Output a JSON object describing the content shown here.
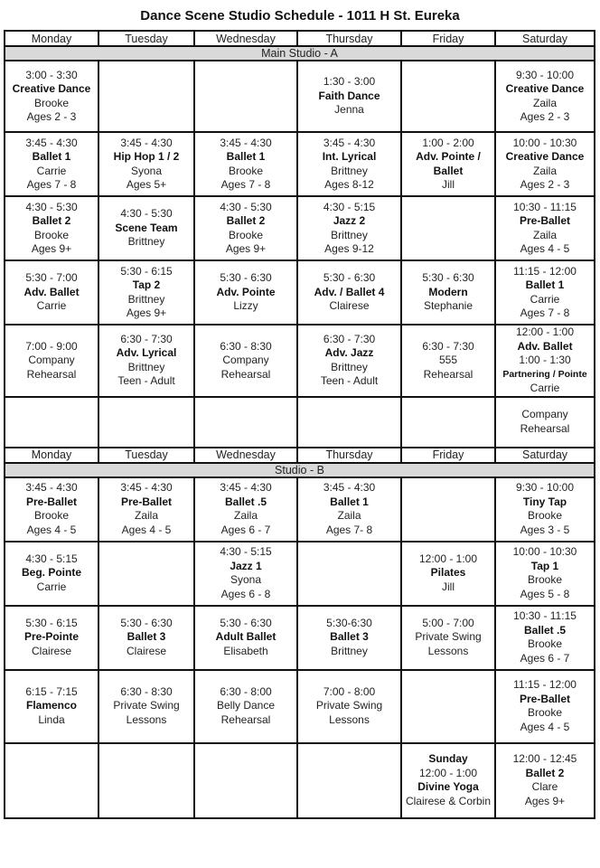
{
  "title": "Dance Scene Studio Schedule - 1011 H St. Eureka",
  "days": [
    "Monday",
    "Tuesday",
    "Wednesday",
    "Thursday",
    "Friday",
    "Saturday"
  ],
  "studios": [
    {
      "name": "Main Studio - A",
      "rows": [
        [
          [
            {
              "text": "3:00 - 3:30"
            },
            {
              "text": "Creative Dance",
              "bold": true
            },
            {
              "text": "Brooke"
            },
            {
              "text": "Ages 2 - 3"
            }
          ],
          [],
          [],
          [
            {
              "text": "1:30 - 3:00"
            },
            {
              "text": "Faith Dance",
              "bold": true
            },
            {
              "text": "Jenna"
            }
          ],
          [],
          [
            {
              "text": "9:30 - 10:00"
            },
            {
              "text": "Creative Dance",
              "bold": true
            },
            {
              "text": "Zaila"
            },
            {
              "text": "Ages 2 - 3"
            }
          ]
        ],
        [
          [
            {
              "text": "3:45 - 4:30"
            },
            {
              "text": "Ballet 1",
              "bold": true
            },
            {
              "text": "Carrie"
            },
            {
              "text": "Ages 7 - 8"
            }
          ],
          [
            {
              "text": "3:45 - 4:30"
            },
            {
              "text": "Hip Hop 1 / 2",
              "bold": true
            },
            {
              "text": "Syona"
            },
            {
              "text": "Ages 5+"
            }
          ],
          [
            {
              "text": "3:45 - 4:30"
            },
            {
              "text": "Ballet 1",
              "bold": true
            },
            {
              "text": "Brooke"
            },
            {
              "text": "Ages 7 - 8"
            }
          ],
          [
            {
              "text": "3:45 - 4:30"
            },
            {
              "text": "Int. Lyrical",
              "bold": true
            },
            {
              "text": "Brittney"
            },
            {
              "text": "Ages 8-12"
            }
          ],
          [
            {
              "text": "1:00 - 2:00"
            },
            {
              "text": "Adv. Pointe /",
              "bold": true
            },
            {
              "text": "Ballet",
              "bold": true
            },
            {
              "text": "Jill"
            }
          ],
          [
            {
              "text": "10:00 - 10:30"
            },
            {
              "text": "Creative Dance",
              "bold": true
            },
            {
              "text": "Zaila"
            },
            {
              "text": "Ages 2 - 3"
            }
          ]
        ],
        [
          [
            {
              "text": "4:30 - 5:30"
            },
            {
              "text": "Ballet 2",
              "bold": true
            },
            {
              "text": "Brooke"
            },
            {
              "text": "Ages 9+"
            }
          ],
          [
            {
              "text": "4:30 - 5:30"
            },
            {
              "text": "Scene Team",
              "bold": true
            },
            {
              "text": "Brittney"
            }
          ],
          [
            {
              "text": "4:30 - 5:30"
            },
            {
              "text": "Ballet 2",
              "bold": true
            },
            {
              "text": "Brooke"
            },
            {
              "text": "Ages 9+"
            }
          ],
          [
            {
              "text": "4:30 - 5:15"
            },
            {
              "text": "Jazz 2",
              "bold": true
            },
            {
              "text": "Brittney"
            },
            {
              "text": "Ages 9-12"
            }
          ],
          [],
          [
            {
              "text": "10:30 - 11:15"
            },
            {
              "text": "Pre-Ballet",
              "bold": true
            },
            {
              "text": "Zaila"
            },
            {
              "text": "Ages 4 - 5"
            }
          ]
        ],
        [
          [
            {
              "text": "5:30 - 7:00"
            },
            {
              "text": "Adv. Ballet",
              "bold": true
            },
            {
              "text": "Carrie"
            }
          ],
          [
            {
              "text": "5:30 - 6:15"
            },
            {
              "text": "Tap 2",
              "bold": true
            },
            {
              "text": "Brittney"
            },
            {
              "text": "Ages 9+"
            }
          ],
          [
            {
              "text": "5:30 - 6:30"
            },
            {
              "text": "Adv. Pointe",
              "bold": true
            },
            {
              "text": "Lizzy"
            }
          ],
          [
            {
              "text": "5:30 - 6:30"
            },
            {
              "text": "Adv. / Ballet 4",
              "bold": true
            },
            {
              "text": "Clairese"
            }
          ],
          [
            {
              "text": "5:30 - 6:30"
            },
            {
              "text": "Modern",
              "bold": true
            },
            {
              "text": "Stephanie"
            }
          ],
          [
            {
              "text": "11:15 - 12:00"
            },
            {
              "text": "Ballet 1",
              "bold": true
            },
            {
              "text": "Carrie"
            },
            {
              "text": "Ages 7 - 8"
            }
          ]
        ],
        [
          [
            {
              "text": "7:00 - 9:00"
            },
            {
              "text": "Company"
            },
            {
              "text": "Rehearsal"
            }
          ],
          [
            {
              "text": "6:30 - 7:30"
            },
            {
              "text": "Adv. Lyrical",
              "bold": true
            },
            {
              "text": "Brittney"
            },
            {
              "text": "Teen - Adult"
            }
          ],
          [
            {
              "text": "6:30 - 8:30"
            },
            {
              "text": "Company"
            },
            {
              "text": "Rehearsal"
            }
          ],
          [
            {
              "text": "6:30 - 7:30"
            },
            {
              "text": "Adv. Jazz",
              "bold": true
            },
            {
              "text": "Brittney"
            },
            {
              "text": "Teen - Adult"
            }
          ],
          [
            {
              "text": "6:30 - 7:30"
            },
            {
              "text": "555"
            },
            {
              "text": "Rehearsal"
            }
          ],
          [
            {
              "text": "12:00 - 1:00"
            },
            {
              "text": "Adv. Ballet",
              "bold": true
            },
            {
              "text": "1:00 - 1:30"
            },
            {
              "text": "Partnering / Pointe",
              "bold": true,
              "small": true
            },
            {
              "text": "Carrie"
            }
          ]
        ],
        [
          [],
          [],
          [],
          [],
          [],
          [
            {
              "text": "Company"
            },
            {
              "text": "Rehearsal"
            }
          ]
        ]
      ]
    },
    {
      "name": "Studio - B",
      "rows": [
        [
          [
            {
              "text": "3:45 - 4:30"
            },
            {
              "text": "Pre-Ballet",
              "bold": true
            },
            {
              "text": "Brooke"
            },
            {
              "text": "Ages 4 - 5"
            }
          ],
          [
            {
              "text": "3:45 - 4:30"
            },
            {
              "text": "Pre-Ballet",
              "bold": true
            },
            {
              "text": "Zaila"
            },
            {
              "text": "Ages 4 - 5"
            }
          ],
          [
            {
              "text": "3:45 - 4:30"
            },
            {
              "text": "Ballet .5",
              "bold": true
            },
            {
              "text": "Zaila"
            },
            {
              "text": "Ages 6 - 7"
            }
          ],
          [
            {
              "text": "3:45 - 4:30"
            },
            {
              "text": "Ballet 1",
              "bold": true
            },
            {
              "text": "Zaila"
            },
            {
              "text": "Ages 7- 8"
            }
          ],
          [],
          [
            {
              "text": "9:30 - 10:00"
            },
            {
              "text": "Tiny Tap",
              "bold": true
            },
            {
              "text": "Brooke"
            },
            {
              "text": "Ages 3 - 5"
            }
          ]
        ],
        [
          [
            {
              "text": "4:30 - 5:15"
            },
            {
              "text": "Beg. Pointe",
              "bold": true
            },
            {
              "text": "Carrie"
            }
          ],
          [],
          [
            {
              "text": "4:30 - 5:15"
            },
            {
              "text": "Jazz 1",
              "bold": true
            },
            {
              "text": "Syona"
            },
            {
              "text": "Ages 6 - 8"
            }
          ],
          [],
          [
            {
              "text": "12:00 - 1:00"
            },
            {
              "text": "Pilates",
              "bold": true
            },
            {
              "text": "Jill"
            }
          ],
          [
            {
              "text": "10:00 - 10:30"
            },
            {
              "text": "Tap 1",
              "bold": true
            },
            {
              "text": "Brooke"
            },
            {
              "text": "Ages 5 - 8"
            }
          ]
        ],
        [
          [
            {
              "text": "5:30 - 6:15"
            },
            {
              "text": "Pre-Pointe",
              "bold": true
            },
            {
              "text": "Clairese"
            }
          ],
          [
            {
              "text": "5:30 - 6:30"
            },
            {
              "text": "Ballet 3",
              "bold": true
            },
            {
              "text": "Clairese"
            }
          ],
          [
            {
              "text": "5:30 - 6:30"
            },
            {
              "text": "Adult Ballet",
              "bold": true
            },
            {
              "text": "Elisabeth"
            }
          ],
          [
            {
              "text": "5:30-6:30"
            },
            {
              "text": "Ballet 3",
              "bold": true
            },
            {
              "text": "Brittney"
            }
          ],
          [
            {
              "text": "5:00 - 7:00"
            },
            {
              "text": "Private Swing"
            },
            {
              "text": "Lessons"
            }
          ],
          [
            {
              "text": "10:30 - 11:15"
            },
            {
              "text": "Ballet .5",
              "bold": true
            },
            {
              "text": "Brooke"
            },
            {
              "text": "Ages 6 - 7"
            }
          ]
        ],
        [
          [
            {
              "text": "6:15 - 7:15"
            },
            {
              "text": "Flamenco",
              "bold": true
            },
            {
              "text": "Linda"
            }
          ],
          [
            {
              "text": "6:30 - 8:30"
            },
            {
              "text": "Private Swing"
            },
            {
              "text": "Lessons"
            }
          ],
          [
            {
              "text": "6:30 - 8:00"
            },
            {
              "text": "Belly Dance"
            },
            {
              "text": "Rehearsal"
            }
          ],
          [
            {
              "text": "7:00 - 8:00"
            },
            {
              "text": "Private Swing"
            },
            {
              "text": "Lessons"
            }
          ],
          [],
          [
            {
              "text": "11:15 - 12:00"
            },
            {
              "text": "Pre-Ballet",
              "bold": true
            },
            {
              "text": "Brooke"
            },
            {
              "text": "Ages 4 - 5"
            }
          ]
        ],
        [
          [],
          [],
          [],
          [],
          [
            {
              "text": "Sunday",
              "bold": true
            },
            {
              "text": "12:00 - 1:00"
            },
            {
              "text": "Divine Yoga",
              "bold": true
            },
            {
              "text": "Clairese & Corbin"
            }
          ],
          [
            {
              "text": "12:00 - 12:45"
            },
            {
              "text": "Ballet 2",
              "bold": true
            },
            {
              "text": "Clare"
            },
            {
              "text": "Ages 9+"
            }
          ]
        ]
      ]
    }
  ]
}
